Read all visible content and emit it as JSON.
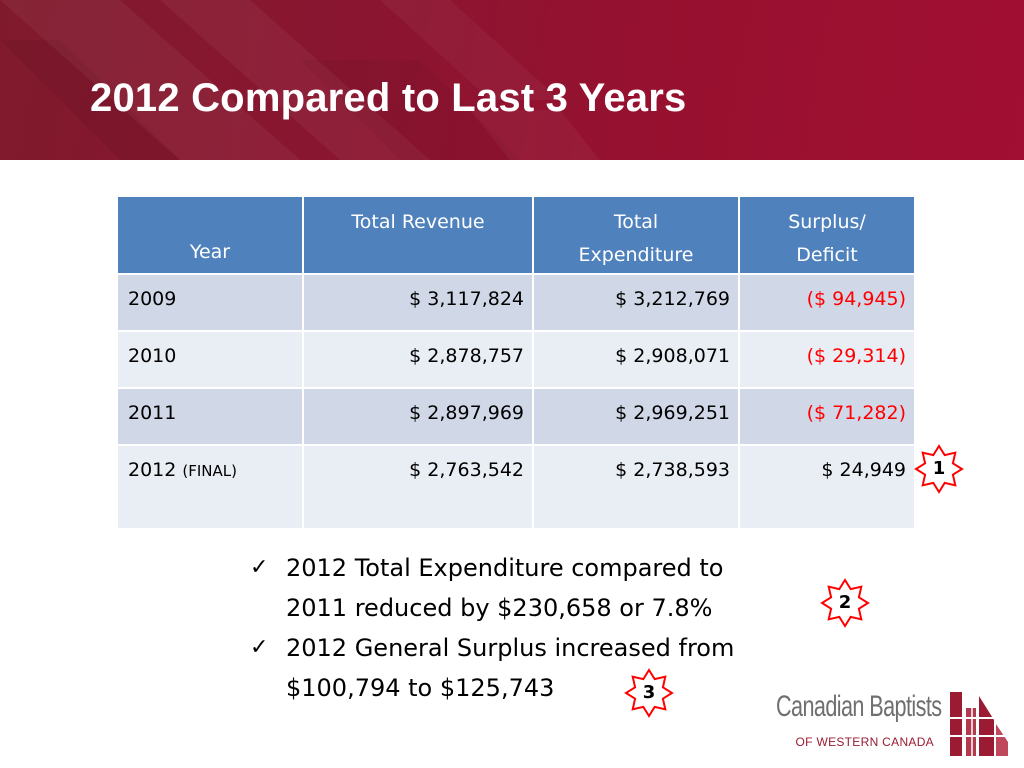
{
  "slide": {
    "title": "2012 Compared to Last 3 Years"
  },
  "table": {
    "headers": {
      "year": "Year",
      "revenue": "Total Revenue",
      "expenditure_line1": "Total",
      "expenditure_line2": "Expenditure",
      "surplus_line1": "Surplus/",
      "surplus_line2": "Deficit"
    },
    "rows": [
      {
        "year": "2009",
        "year_note": "",
        "revenue": "$ 3,117,824",
        "expenditure": "$ 3,212,769",
        "surplus": "($ 94,945)",
        "negative": true
      },
      {
        "year": "2010",
        "year_note": "",
        "revenue": "$ 2,878,757",
        "expenditure": "$ 2,908,071",
        "surplus": "($ 29,314)",
        "negative": true
      },
      {
        "year": "2011",
        "year_note": "",
        "revenue": "$ 2,897,969",
        "expenditure": "$ 2,969,251",
        "surplus": "($ 71,282)",
        "negative": true
      },
      {
        "year": "2012",
        "year_note": "(FINAL)",
        "revenue": "$ 2,763,542",
        "expenditure": "$ 2,738,593",
        "surplus": "$ 24,949",
        "negative": false
      }
    ]
  },
  "bullets": [
    {
      "check": "✓",
      "line1": "2012 Total Expenditure compared to",
      "line2": "2011 reduced by $230,658 or 7.8%"
    },
    {
      "check": "✓",
      "line1": "2012 General Surplus increased from",
      "line2": "$100,794 to $125,743"
    }
  ],
  "badges": [
    "1",
    "2",
    "3"
  ],
  "logo": {
    "name": "Canadian Baptists",
    "subtitle": "OF WESTERN CANADA"
  },
  "colors": {
    "header_bg": "#8a1530",
    "table_header": "#4f81bd",
    "row_odd": "#d0d8e8",
    "row_even": "#e9edf4",
    "negative": "#ff0000",
    "badge_border": "#ff0000",
    "logo_accent": "#9b1b32"
  }
}
